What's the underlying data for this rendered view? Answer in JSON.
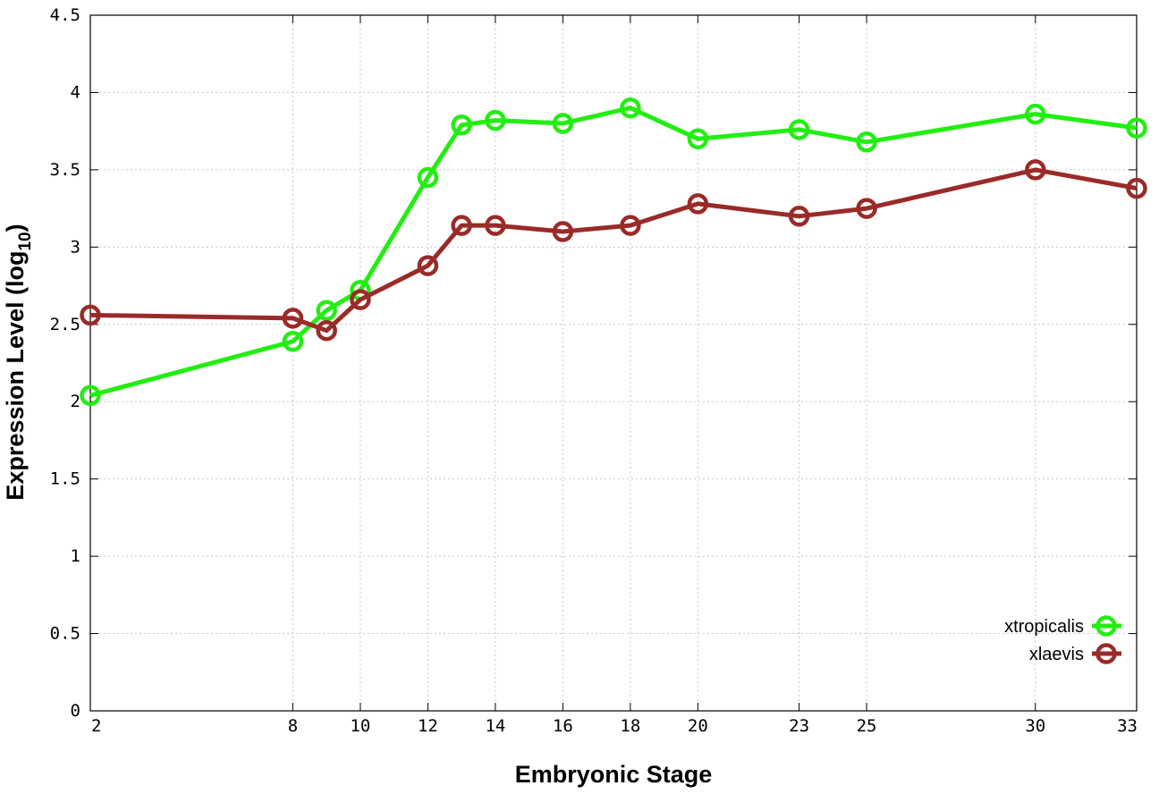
{
  "chart_data": {
    "type": "line",
    "title": "",
    "xlabel": "Embryonic Stage",
    "ylabel": {
      "main": "Expression Level (log",
      "subscript": "10",
      "close": ")"
    },
    "x": [
      2,
      8,
      9,
      10,
      12,
      13,
      14,
      16,
      18,
      20,
      23,
      25,
      30,
      33
    ],
    "xticks": [
      2,
      8,
      10,
      12,
      14,
      16,
      18,
      20,
      23,
      25,
      30,
      33
    ],
    "xtick_labels": [
      "2",
      "8",
      "10",
      "12",
      "14",
      "16",
      "18",
      "20",
      "23",
      "25",
      "30",
      "33"
    ],
    "xlim": [
      2,
      33
    ],
    "ylim": [
      0,
      4.5
    ],
    "yticks": [
      0,
      0.5,
      1,
      1.5,
      2,
      2.5,
      3,
      3.5,
      4,
      4.5
    ],
    "ytick_labels": [
      "0",
      "0.5",
      "1",
      "1.5",
      "2",
      "2.5",
      "3",
      "3.5",
      "4",
      "4.5"
    ],
    "grid": true,
    "legend_position": "bottom-right",
    "series": [
      {
        "name": "xtropicalis",
        "color": "#22ee11",
        "values": [
          2.04,
          2.39,
          2.59,
          2.72,
          3.45,
          3.79,
          3.82,
          3.8,
          3.9,
          3.7,
          3.76,
          3.68,
          3.86,
          3.77
        ]
      },
      {
        "name": "xlaevis",
        "color": "#992b28",
        "values": [
          2.56,
          2.54,
          2.46,
          2.66,
          2.88,
          3.14,
          3.14,
          3.1,
          3.14,
          3.28,
          3.2,
          3.25,
          3.5,
          3.38
        ]
      }
    ]
  }
}
